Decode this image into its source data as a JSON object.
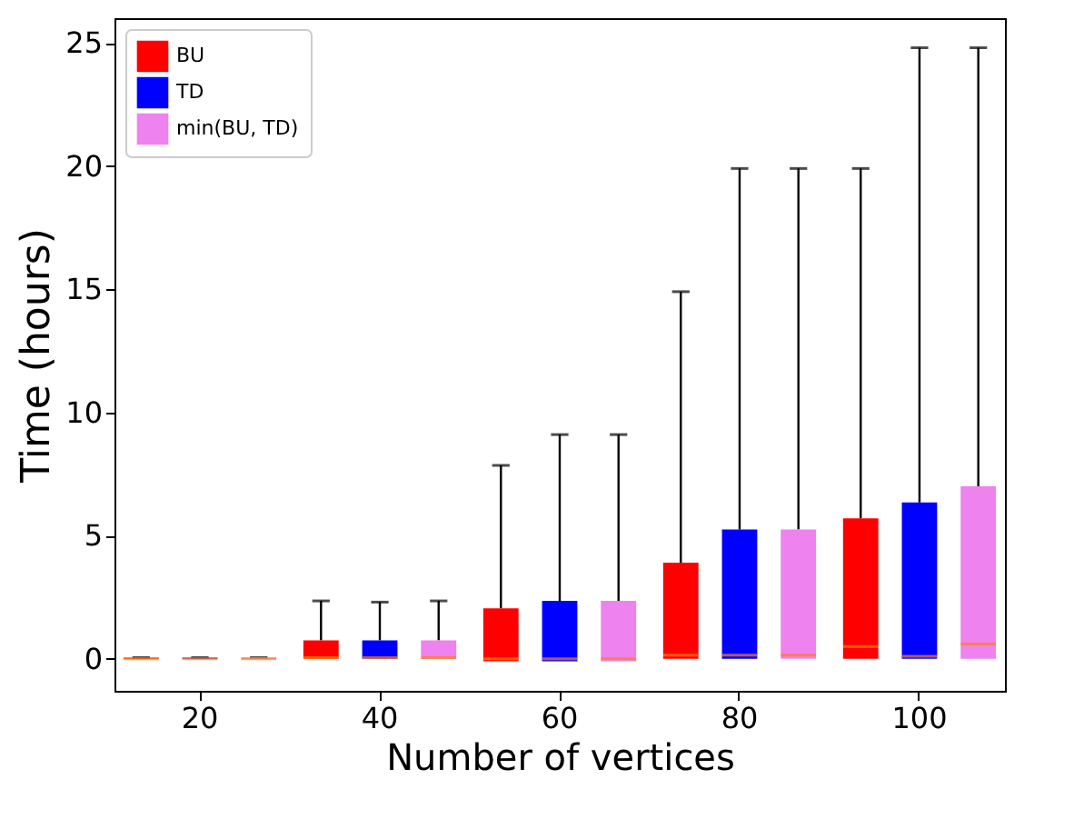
{
  "chart_data": {
    "type": "box",
    "xlabel": "Number of vertices",
    "ylabel": "Time (hours)",
    "categories": [
      "20",
      "40",
      "60",
      "80",
      "100"
    ],
    "ylim": [
      -1.3,
      26
    ],
    "yticks": [
      0,
      5,
      10,
      15,
      20,
      25
    ],
    "legend": "top left",
    "grid": false,
    "series": [
      {
        "name": "BU",
        "color": "#ff0000",
        "boxes": [
          {
            "low": 0,
            "q1": 0,
            "median": 0,
            "q3": 0.05,
            "high": 0.05
          },
          {
            "low": 0,
            "q1": 0,
            "median": 0.05,
            "q3": 0.75,
            "high": 2.35
          },
          {
            "low": -0.1,
            "q1": -0.1,
            "median": 0,
            "q3": 2.05,
            "high": 7.85
          },
          {
            "low": 0,
            "q1": 0,
            "median": 0.15,
            "q3": 3.9,
            "high": 14.9
          },
          {
            "low": 0,
            "q1": 0,
            "median": 0.5,
            "q3": 5.7,
            "high": 19.9
          }
        ]
      },
      {
        "name": "TD",
        "color": "#0000ff",
        "boxes": [
          {
            "low": 0,
            "q1": 0,
            "median": 0,
            "q3": 0.05,
            "high": 0.05
          },
          {
            "low": 0,
            "q1": 0,
            "median": 0.05,
            "q3": 0.75,
            "high": 2.3
          },
          {
            "low": -0.1,
            "q1": -0.1,
            "median": 0,
            "q3": 2.35,
            "high": 9.1
          },
          {
            "low": 0,
            "q1": 0,
            "median": 0.15,
            "q3": 5.25,
            "high": 19.9
          },
          {
            "low": 0,
            "q1": 0,
            "median": 0.1,
            "q3": 6.35,
            "high": 24.8
          }
        ]
      },
      {
        "name": "min(BU, TD)",
        "color": "#ee82ee",
        "boxes": [
          {
            "low": 0,
            "q1": 0,
            "median": 0,
            "q3": 0.05,
            "high": 0.05
          },
          {
            "low": 0,
            "q1": 0,
            "median": 0.05,
            "q3": 0.75,
            "high": 2.35
          },
          {
            "low": -0.1,
            "q1": -0.1,
            "median": 0,
            "q3": 2.35,
            "high": 9.1
          },
          {
            "low": 0,
            "q1": 0,
            "median": 0.15,
            "q3": 5.25,
            "high": 19.9
          },
          {
            "low": 0,
            "q1": 0,
            "median": 0.6,
            "q3": 7.0,
            "high": 24.8
          }
        ]
      }
    ]
  }
}
